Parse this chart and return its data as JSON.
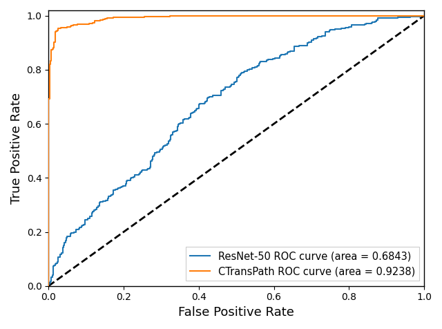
{
  "title": "",
  "xlabel": "False Positive Rate",
  "ylabel": "True Positive Rate",
  "resnet_label": "ResNet-50 ROC curve (area = 0.6843)",
  "ctrans_label": "CTransPath ROC curve (area = 0.9238)",
  "resnet_color": "#1f77b4",
  "ctrans_color": "#ff7f0e",
  "diagonal_color": "black",
  "background_color": "#ffffff",
  "resnet_auc": 0.6843,
  "ctrans_auc": 0.9238,
  "figsize": [
    6.4,
    4.76
  ],
  "dpi": 100
}
